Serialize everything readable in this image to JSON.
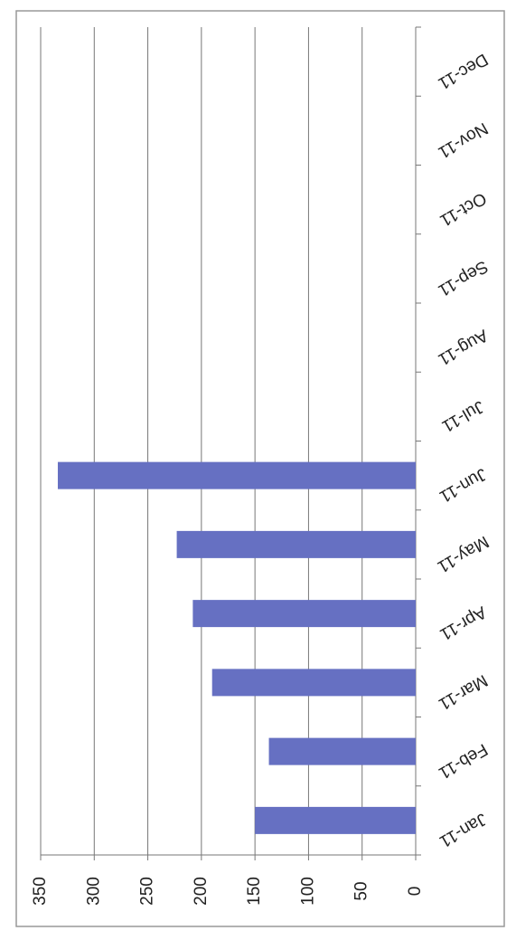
{
  "chart_data": {
    "type": "bar",
    "categories": [
      "Jan-11",
      "Feb-11",
      "Mar-11",
      "Apr-11",
      "May-11",
      "Jun-11",
      "Jul-11",
      "Aug-11",
      "Sep-11",
      "Oct-11",
      "Nov-11",
      "Dec-11"
    ],
    "values": [
      150,
      137,
      190,
      208,
      223,
      334,
      null,
      null,
      null,
      null,
      null,
      null
    ],
    "color": "#6670c2",
    "xlim": [
      0,
      350
    ],
    "xticks": [
      0,
      50,
      100,
      150,
      200,
      250,
      300,
      350
    ],
    "grid": true
  }
}
